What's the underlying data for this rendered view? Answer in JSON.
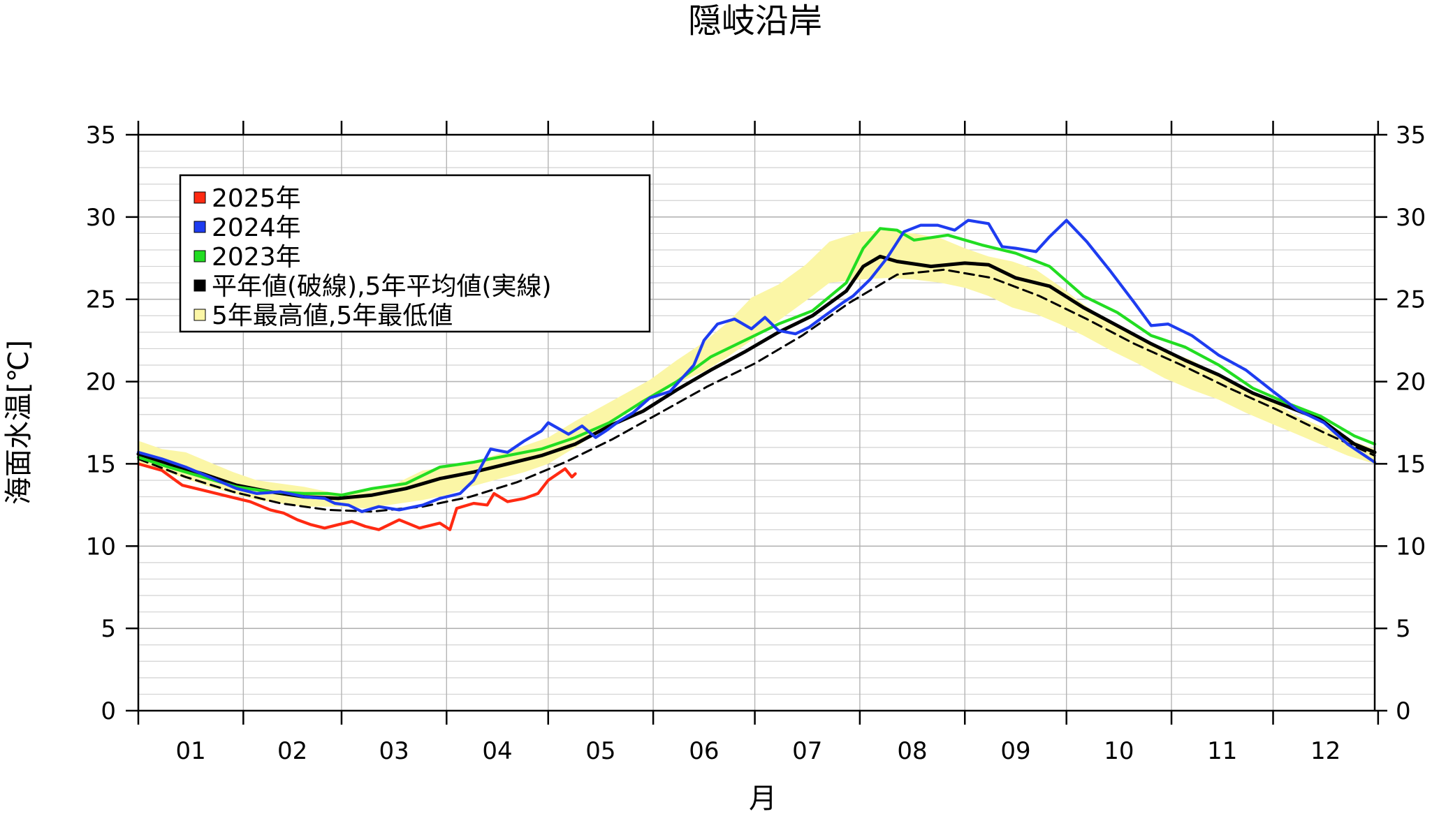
{
  "chart_data": {
    "type": "line",
    "title": "隠岐沿岸",
    "xlabel": "月",
    "ylabel": "海面水温[℃]",
    "ylim": [
      0,
      35
    ],
    "yticks": [
      0,
      5,
      10,
      15,
      20,
      25,
      30,
      35
    ],
    "xlim": [
      1,
      366
    ],
    "x_unit": "day of year",
    "months": [
      "01",
      "02",
      "03",
      "04",
      "05",
      "06",
      "07",
      "08",
      "09",
      "10",
      "11",
      "12"
    ],
    "grid": true,
    "legend_position": "top-left",
    "legend": [
      {
        "label": "2025年",
        "color": "#ff2a12"
      },
      {
        "label": "2024年",
        "color": "#1e3cf0"
      },
      {
        "label": "2023年",
        "color": "#22dd22"
      },
      {
        "label": "平年値(破線),5年平均値(実線)",
        "color": "#000000"
      },
      {
        "label": "5年最高値,5年最低値",
        "color": "#fbf6a6"
      }
    ],
    "band": {
      "x": [
        1,
        8,
        15,
        22,
        29,
        36,
        43,
        50,
        57,
        61,
        68,
        75,
        85,
        92,
        99,
        106,
        115,
        122,
        130,
        138,
        145,
        152,
        160,
        168,
        175,
        182,
        190,
        198,
        205,
        214,
        222,
        230,
        238,
        245,
        252,
        259,
        266,
        273,
        280,
        288,
        296,
        304,
        312,
        320,
        328,
        336,
        343,
        351,
        358,
        366
      ],
      "high": [
        16.4,
        15.9,
        15.7,
        15.1,
        14.5,
        14.0,
        13.8,
        13.6,
        13.3,
        13.2,
        13.3,
        13.6,
        14.6,
        14.8,
        15.1,
        15.5,
        16.1,
        16.6,
        17.6,
        18.5,
        19.3,
        20.1,
        21.3,
        22.4,
        23.6,
        25.1,
        25.9,
        27.1,
        28.5,
        29.1,
        29.2,
        29.0,
        28.7,
        28.1,
        27.6,
        27.3,
        26.8,
        25.8,
        24.7,
        23.6,
        22.8,
        21.9,
        21.3,
        20.4,
        19.6,
        18.8,
        17.9,
        17.2,
        16.5,
        15.9
      ],
      "low": [
        15.0,
        14.6,
        14.1,
        13.6,
        13.2,
        12.8,
        12.6,
        12.4,
        12.4,
        12.4,
        12.3,
        12.5,
        12.8,
        13.1,
        13.6,
        14.0,
        14.5,
        15.0,
        16.0,
        17.1,
        18.1,
        18.9,
        19.9,
        20.6,
        21.5,
        22.5,
        23.7,
        24.9,
        26.0,
        26.2,
        26.3,
        26.2,
        26.0,
        25.7,
        25.2,
        24.5,
        24.1,
        23.5,
        22.8,
        21.9,
        21.1,
        20.2,
        19.5,
        18.9,
        18.1,
        17.4,
        16.8,
        16.1,
        15.5,
        15.0
      ]
    },
    "series": [
      {
        "name": "平年値",
        "style": "dashed",
        "color": "#000000",
        "x": [
          1,
          15,
          29,
          43,
          57,
          70,
          85,
          99,
          113,
          127,
          141,
          155,
          169,
          183,
          197,
          211,
          225,
          239,
          253,
          267,
          281,
          295,
          309,
          323,
          337,
          351,
          366
        ],
        "values": [
          15.3,
          14.2,
          13.3,
          12.6,
          12.2,
          12.1,
          12.4,
          13.0,
          13.9,
          15.1,
          16.5,
          18.1,
          19.7,
          21.1,
          22.8,
          24.8,
          26.5,
          26.8,
          26.3,
          25.2,
          23.8,
          22.3,
          21.0,
          19.6,
          18.3,
          16.9,
          15.5
        ]
      },
      {
        "name": "5年平均値",
        "style": "solid",
        "color": "#000000",
        "x": [
          1,
          10,
          20,
          30,
          40,
          50,
          60,
          70,
          80,
          90,
          100,
          110,
          120,
          130,
          140,
          150,
          160,
          170,
          180,
          190,
          200,
          210,
          215,
          220,
          225,
          235,
          245,
          252,
          260,
          270,
          280,
          290,
          300,
          310,
          320,
          330,
          340,
          350,
          360,
          366
        ],
        "values": [
          15.6,
          15.0,
          14.4,
          13.7,
          13.3,
          13.0,
          12.9,
          13.1,
          13.5,
          14.1,
          14.5,
          15.0,
          15.5,
          16.2,
          17.3,
          18.2,
          19.5,
          20.7,
          21.8,
          23.0,
          24.0,
          25.5,
          27.0,
          27.6,
          27.3,
          27.0,
          27.2,
          27.1,
          26.3,
          25.8,
          24.5,
          23.4,
          22.3,
          21.3,
          20.4,
          19.3,
          18.5,
          17.7,
          16.2,
          15.7
        ]
      },
      {
        "name": "2023年",
        "style": "solid",
        "color": "#22dd22",
        "x": [
          1,
          10,
          20,
          30,
          40,
          50,
          57,
          61,
          70,
          80,
          90,
          100,
          110,
          120,
          130,
          140,
          150,
          160,
          170,
          180,
          190,
          200,
          210,
          215,
          220,
          225,
          230,
          240,
          250,
          260,
          270,
          280,
          290,
          300,
          310,
          320,
          330,
          340,
          350,
          360,
          366
        ],
        "values": [
          15.4,
          14.8,
          14.2,
          13.6,
          13.3,
          13.2,
          13.2,
          13.1,
          13.5,
          13.8,
          14.8,
          15.1,
          15.5,
          15.9,
          16.6,
          17.5,
          18.8,
          20.0,
          21.5,
          22.5,
          23.5,
          24.3,
          26.0,
          28.1,
          29.3,
          29.2,
          28.6,
          28.9,
          28.3,
          27.8,
          27.0,
          25.2,
          24.2,
          22.8,
          22.1,
          21.0,
          19.6,
          18.7,
          17.9,
          16.7,
          16.2
        ]
      },
      {
        "name": "2024年",
        "style": "solid",
        "color": "#1e3cf0",
        "x": [
          1,
          8,
          15,
          22,
          30,
          36,
          43,
          50,
          56,
          59,
          63,
          67,
          72,
          78,
          85,
          90,
          96,
          100,
          105,
          110,
          115,
          120,
          122,
          128,
          132,
          136,
          139,
          143,
          147,
          152,
          158,
          165,
          168,
          172,
          177,
          182,
          186,
          190,
          195,
          199,
          203,
          209,
          212,
          217,
          222,
          227,
          232,
          237,
          242,
          246,
          252,
          256,
          260,
          266,
          270,
          275,
          281,
          288,
          295,
          300,
          305,
          312,
          320,
          328,
          336,
          343,
          351,
          358,
          366
        ],
        "values": [
          15.7,
          15.3,
          14.8,
          14.2,
          13.5,
          13.2,
          13.3,
          13.0,
          12.9,
          12.6,
          12.5,
          12.1,
          12.4,
          12.2,
          12.5,
          12.9,
          13.2,
          14.0,
          15.9,
          15.7,
          16.4,
          17.0,
          17.5,
          16.8,
          17.3,
          16.6,
          17.0,
          17.6,
          18.1,
          19.0,
          19.4,
          21.0,
          22.5,
          23.5,
          23.8,
          23.2,
          23.9,
          23.1,
          22.9,
          23.3,
          23.9,
          24.8,
          25.2,
          26.2,
          27.5,
          29.1,
          29.5,
          29.5,
          29.2,
          29.8,
          29.6,
          28.2,
          28.1,
          27.9,
          28.8,
          29.8,
          28.5,
          26.7,
          24.8,
          23.4,
          23.5,
          22.8,
          21.6,
          20.7,
          19.4,
          18.3,
          17.5,
          16.2,
          15.1
        ]
      },
      {
        "name": "2025年",
        "style": "solid",
        "color": "#ff2a12",
        "x": [
          1,
          8,
          14,
          20,
          28,
          34,
          40,
          44,
          48,
          52,
          56,
          60,
          64,
          68,
          72,
          78,
          84,
          90,
          93,
          95,
          100,
          104,
          106,
          110,
          115,
          119,
          122,
          127,
          129,
          130
        ],
        "values": [
          15.0,
          14.6,
          13.7,
          13.4,
          13.0,
          12.7,
          12.2,
          12.0,
          11.6,
          11.3,
          11.1,
          11.3,
          11.5,
          11.2,
          11.0,
          11.6,
          11.1,
          11.4,
          11.0,
          12.3,
          12.6,
          12.5,
          13.2,
          12.7,
          12.9,
          13.2,
          14.0,
          14.7,
          14.2,
          14.4
        ]
      }
    ]
  }
}
